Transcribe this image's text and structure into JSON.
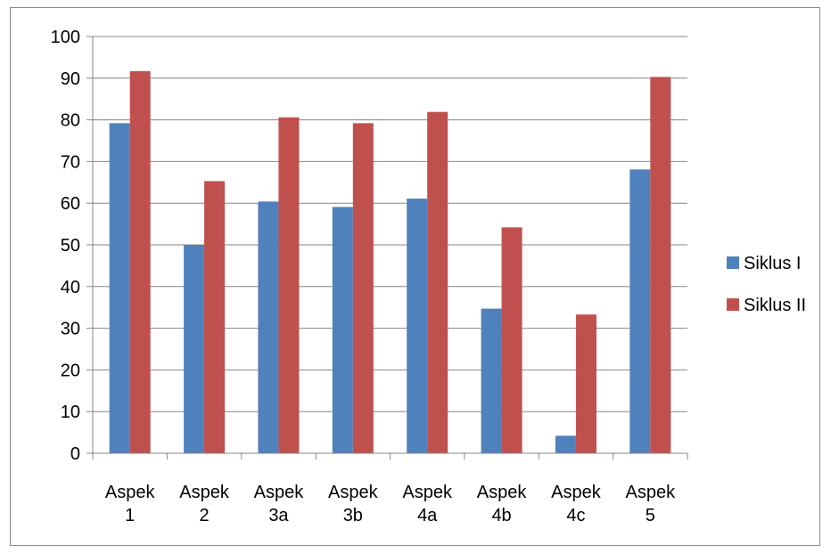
{
  "chart_data": {
    "type": "bar",
    "categories": [
      [
        "Aspek",
        "1"
      ],
      [
        "Aspek",
        "2"
      ],
      [
        "Aspek",
        "3a"
      ],
      [
        "Aspek",
        "3b"
      ],
      [
        "Aspek",
        "4a"
      ],
      [
        "Aspek",
        "4b"
      ],
      [
        "Aspek",
        "4c"
      ],
      [
        "Aspek",
        "5"
      ]
    ],
    "series": [
      {
        "name": "Siklus I",
        "color": "#4f81bd",
        "values": [
          79.2,
          50,
          60.4,
          59.1,
          61.1,
          34.7,
          4.2,
          68.1
        ]
      },
      {
        "name": "Siklus II",
        "color": "#c0504d",
        "values": [
          91.7,
          65.3,
          80.6,
          79.2,
          81.9,
          54.2,
          33.3,
          90.3
        ]
      }
    ],
    "ylim": [
      0,
      100
    ],
    "yticks": [
      0,
      10,
      20,
      30,
      40,
      50,
      60,
      70,
      80,
      90,
      100
    ],
    "grid": true,
    "legend_position": "right"
  }
}
